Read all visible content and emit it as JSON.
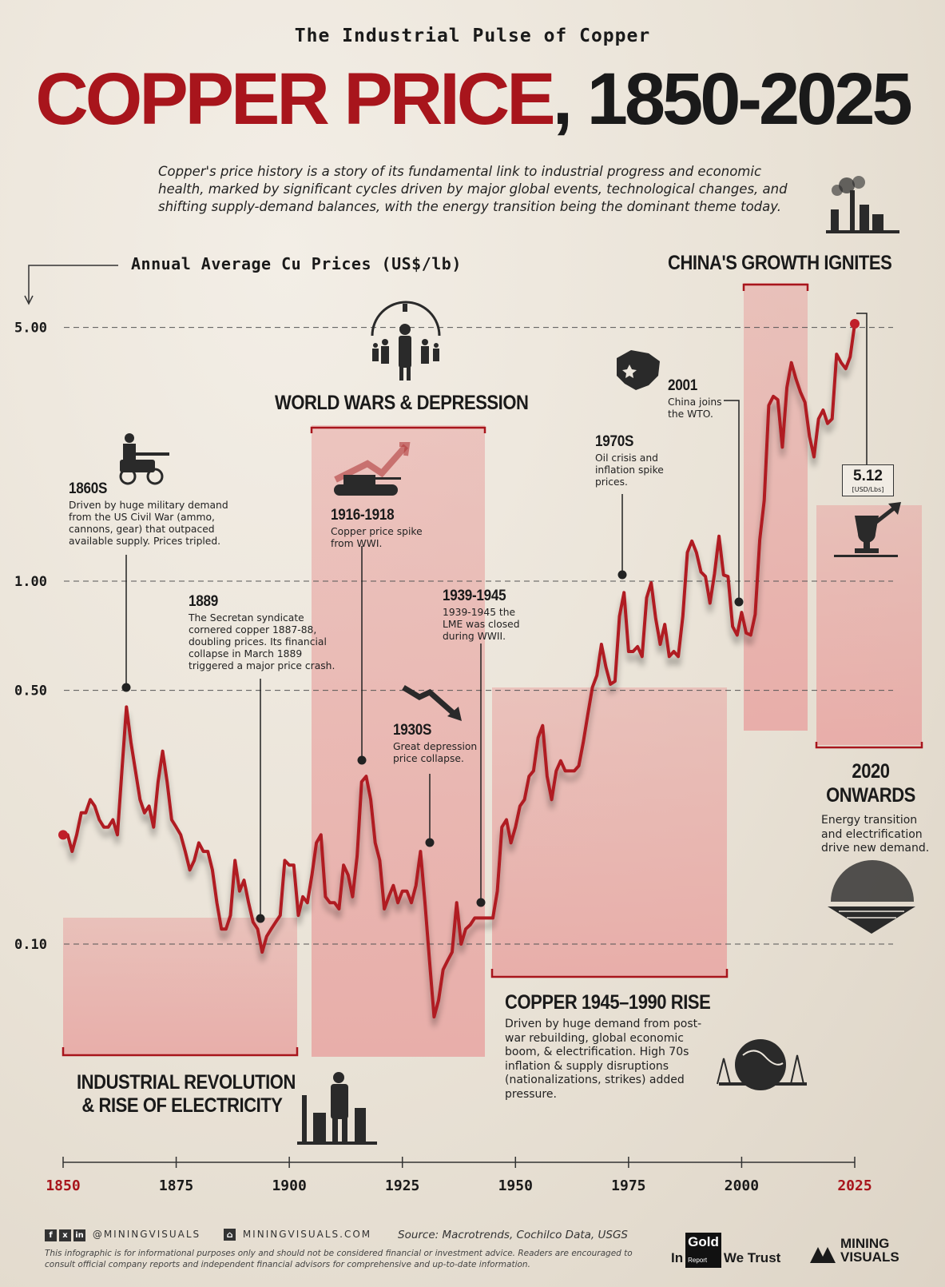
{
  "header": {
    "kicker": "The Industrial Pulse of Copper",
    "title_red": "COPPER PRICE",
    "title_black": ", 1850-2025",
    "intro": "Copper's price history is a story of its fundamental link to industrial progress and economic health, marked by significant cycles driven by major global events, technological changes, and shifting supply-demand balances, with the energy transition being the dominant theme today."
  },
  "colors": {
    "accent": "#a8151c",
    "band": "#e9a9a6",
    "line": "#b01a22",
    "text": "#1a1a1a"
  },
  "chart_data": {
    "type": "line",
    "title": "COPPER PRICE, 1850-2025",
    "ylabel": "Annual Average Cu Prices (US$/lb)",
    "xlabel": "",
    "y_scale": "log",
    "xlim": [
      1850,
      2025
    ],
    "ylim": [
      0.08,
      6.5
    ],
    "y_ticks": [
      "5.00",
      "1.00",
      "0.50",
      "0.10"
    ],
    "x_ticks": [
      "1850",
      "1875",
      "1900",
      "1925",
      "1950",
      "1975",
      "2000",
      "2025"
    ],
    "series": [
      {
        "x": [
          1850,
          1851,
          1852,
          1853,
          1854,
          1855,
          1856,
          1857,
          1858,
          1859,
          1860,
          1861,
          1862,
          1863,
          1864,
          1865,
          1866,
          1867,
          1868,
          1869,
          1870,
          1871,
          1872,
          1873,
          1874,
          1875,
          1876,
          1877,
          1878,
          1879,
          1880,
          1881,
          1882,
          1883,
          1884,
          1885,
          1886,
          1887,
          1888,
          1889,
          1890,
          1891,
          1892,
          1893,
          1894,
          1895,
          1896,
          1897,
          1898,
          1899,
          1900,
          1901,
          1902,
          1903,
          1904,
          1905,
          1906,
          1907,
          1908,
          1909,
          1910,
          1911,
          1912,
          1913,
          1914,
          1915,
          1916,
          1917,
          1918,
          1919,
          1920,
          1921,
          1922,
          1923,
          1924,
          1925,
          1926,
          1927,
          1928,
          1929,
          1930,
          1931,
          1932,
          1933,
          1934,
          1935,
          1936,
          1937,
          1938,
          1939,
          1940,
          1941,
          1942,
          1943,
          1944,
          1945,
          1946,
          1947,
          1948,
          1949,
          1950,
          1951,
          1952,
          1953,
          1954,
          1955,
          1956,
          1957,
          1958,
          1959,
          1960,
          1961,
          1962,
          1963,
          1964,
          1965,
          1966,
          1967,
          1968,
          1969,
          1970,
          1971,
          1972,
          1973,
          1974,
          1975,
          1976,
          1977,
          1978,
          1979,
          1980,
          1981,
          1982,
          1983,
          1984,
          1985,
          1986,
          1987,
          1988,
          1989,
          1990,
          1991,
          1992,
          1993,
          1994,
          1995,
          1996,
          1997,
          1998,
          1999,
          2000,
          2001,
          2002,
          2003,
          2004,
          2005,
          2006,
          2007,
          2008,
          2009,
          2010,
          2011,
          2012,
          2013,
          2014,
          2015,
          2016,
          2017,
          2018,
          2019,
          2020,
          2021,
          2022,
          2023,
          2024,
          2025
        ],
        "values": [
          0.2,
          0.2,
          0.18,
          0.2,
          0.23,
          0.23,
          0.25,
          0.24,
          0.22,
          0.21,
          0.21,
          0.22,
          0.2,
          0.3,
          0.45,
          0.36,
          0.3,
          0.25,
          0.23,
          0.24,
          0.21,
          0.28,
          0.34,
          0.28,
          0.22,
          0.21,
          0.2,
          0.18,
          0.16,
          0.17,
          0.19,
          0.18,
          0.18,
          0.16,
          0.13,
          0.11,
          0.11,
          0.12,
          0.17,
          0.14,
          0.15,
          0.13,
          0.115,
          0.11,
          0.095,
          0.105,
          0.11,
          0.115,
          0.12,
          0.17,
          0.165,
          0.165,
          0.12,
          0.135,
          0.13,
          0.155,
          0.19,
          0.2,
          0.135,
          0.13,
          0.13,
          0.125,
          0.165,
          0.155,
          0.135,
          0.175,
          0.28,
          0.29,
          0.25,
          0.19,
          0.17,
          0.125,
          0.135,
          0.145,
          0.13,
          0.14,
          0.14,
          0.13,
          0.145,
          0.18,
          0.13,
          0.09,
          0.063,
          0.07,
          0.085,
          0.09,
          0.095,
          0.13,
          0.1,
          0.11,
          0.113,
          0.118,
          0.118,
          0.118,
          0.118,
          0.118,
          0.14,
          0.21,
          0.22,
          0.19,
          0.21,
          0.24,
          0.25,
          0.29,
          0.3,
          0.37,
          0.4,
          0.29,
          0.25,
          0.3,
          0.32,
          0.3,
          0.3,
          0.3,
          0.31,
          0.36,
          0.43,
          0.51,
          0.55,
          0.67,
          0.58,
          0.52,
          0.53,
          0.8,
          0.93,
          0.64,
          0.64,
          0.66,
          0.62,
          0.9,
          0.99,
          0.79,
          0.67,
          0.76,
          0.62,
          0.64,
          0.62,
          0.8,
          1.2,
          1.29,
          1.2,
          1.06,
          1.03,
          0.87,
          1.05,
          1.33,
          1.04,
          1.03,
          0.75,
          0.71,
          0.82,
          0.72,
          0.71,
          0.81,
          1.3,
          1.67,
          3.05,
          3.23,
          3.16,
          2.34,
          3.42,
          4.0,
          3.61,
          3.32,
          3.11,
          2.5,
          2.2,
          2.8,
          2.96,
          2.72,
          2.8,
          4.22,
          4.0,
          3.85,
          4.15,
          5.12
        ]
      }
    ]
  },
  "events": {
    "e1860": {
      "title": "1860S",
      "desc": "Driven by huge military demand from the US Civil War (ammo, cannons, gear) that outpaced available supply. Prices tripled."
    },
    "e1889": {
      "title": "1889",
      "desc": "The Secretan syndicate cornered copper 1887-88, doubling prices. Its financial collapse in March 1889 triggered a major price crash."
    },
    "e1916": {
      "title": "1916-1918",
      "desc": "Copper price spike from WWI."
    },
    "e1930": {
      "title": "1930S",
      "desc": "Great depression price collapse."
    },
    "e1939": {
      "title": "1939-1945",
      "desc": "1939-1945 the LME was closed during WWII."
    },
    "e1970": {
      "title": "1970S",
      "desc": "Oil crisis and inflation spike prices."
    },
    "e2001": {
      "title": "2001",
      "desc": "China joins the WTO."
    }
  },
  "eras": {
    "industrial": {
      "title_l1": "INDUSTRIAL REVOLUTION",
      "title_l2": "& RISE OF ELECTRICITY"
    },
    "wars": {
      "title": "WORLD WARS & DEPRESSION"
    },
    "postwar": {
      "title": "COPPER 1945–1990 RISE",
      "desc": "Driven by huge demand from post-war rebuilding, global economic boom, & electrification. High 70s inflation & supply disruptions (nationalizations, strikes) added pressure."
    },
    "china": {
      "title": "CHINA'S GROWTH IGNITES"
    },
    "energy": {
      "title_l1": "2020",
      "title_l2": "ONWARDS",
      "desc": "Energy transition and electrification drive new demand."
    }
  },
  "current_price": {
    "value": "5.12",
    "unit": "[USD/Lbs]"
  },
  "footer": {
    "social_icons": [
      "f",
      "x",
      "in"
    ],
    "handle": "@MININGVISUALS",
    "site": "MININGVISUALS.COM",
    "source": "Source: Macrotrends, Cochilco Data, USGS",
    "disclaimer": "This infographic is for informational purposes only and should not be considered financial or investment advice. Readers are encouraged to consult official company reports and independent financial advisors for comprehensive and up-to-date information.",
    "brand1_a": "In",
    "brand1_b": "Gold",
    "brand1_sub": "Report",
    "brand1_c": "We Trust",
    "brand2_l1": "MINING",
    "brand2_l2": "VISUALS"
  }
}
